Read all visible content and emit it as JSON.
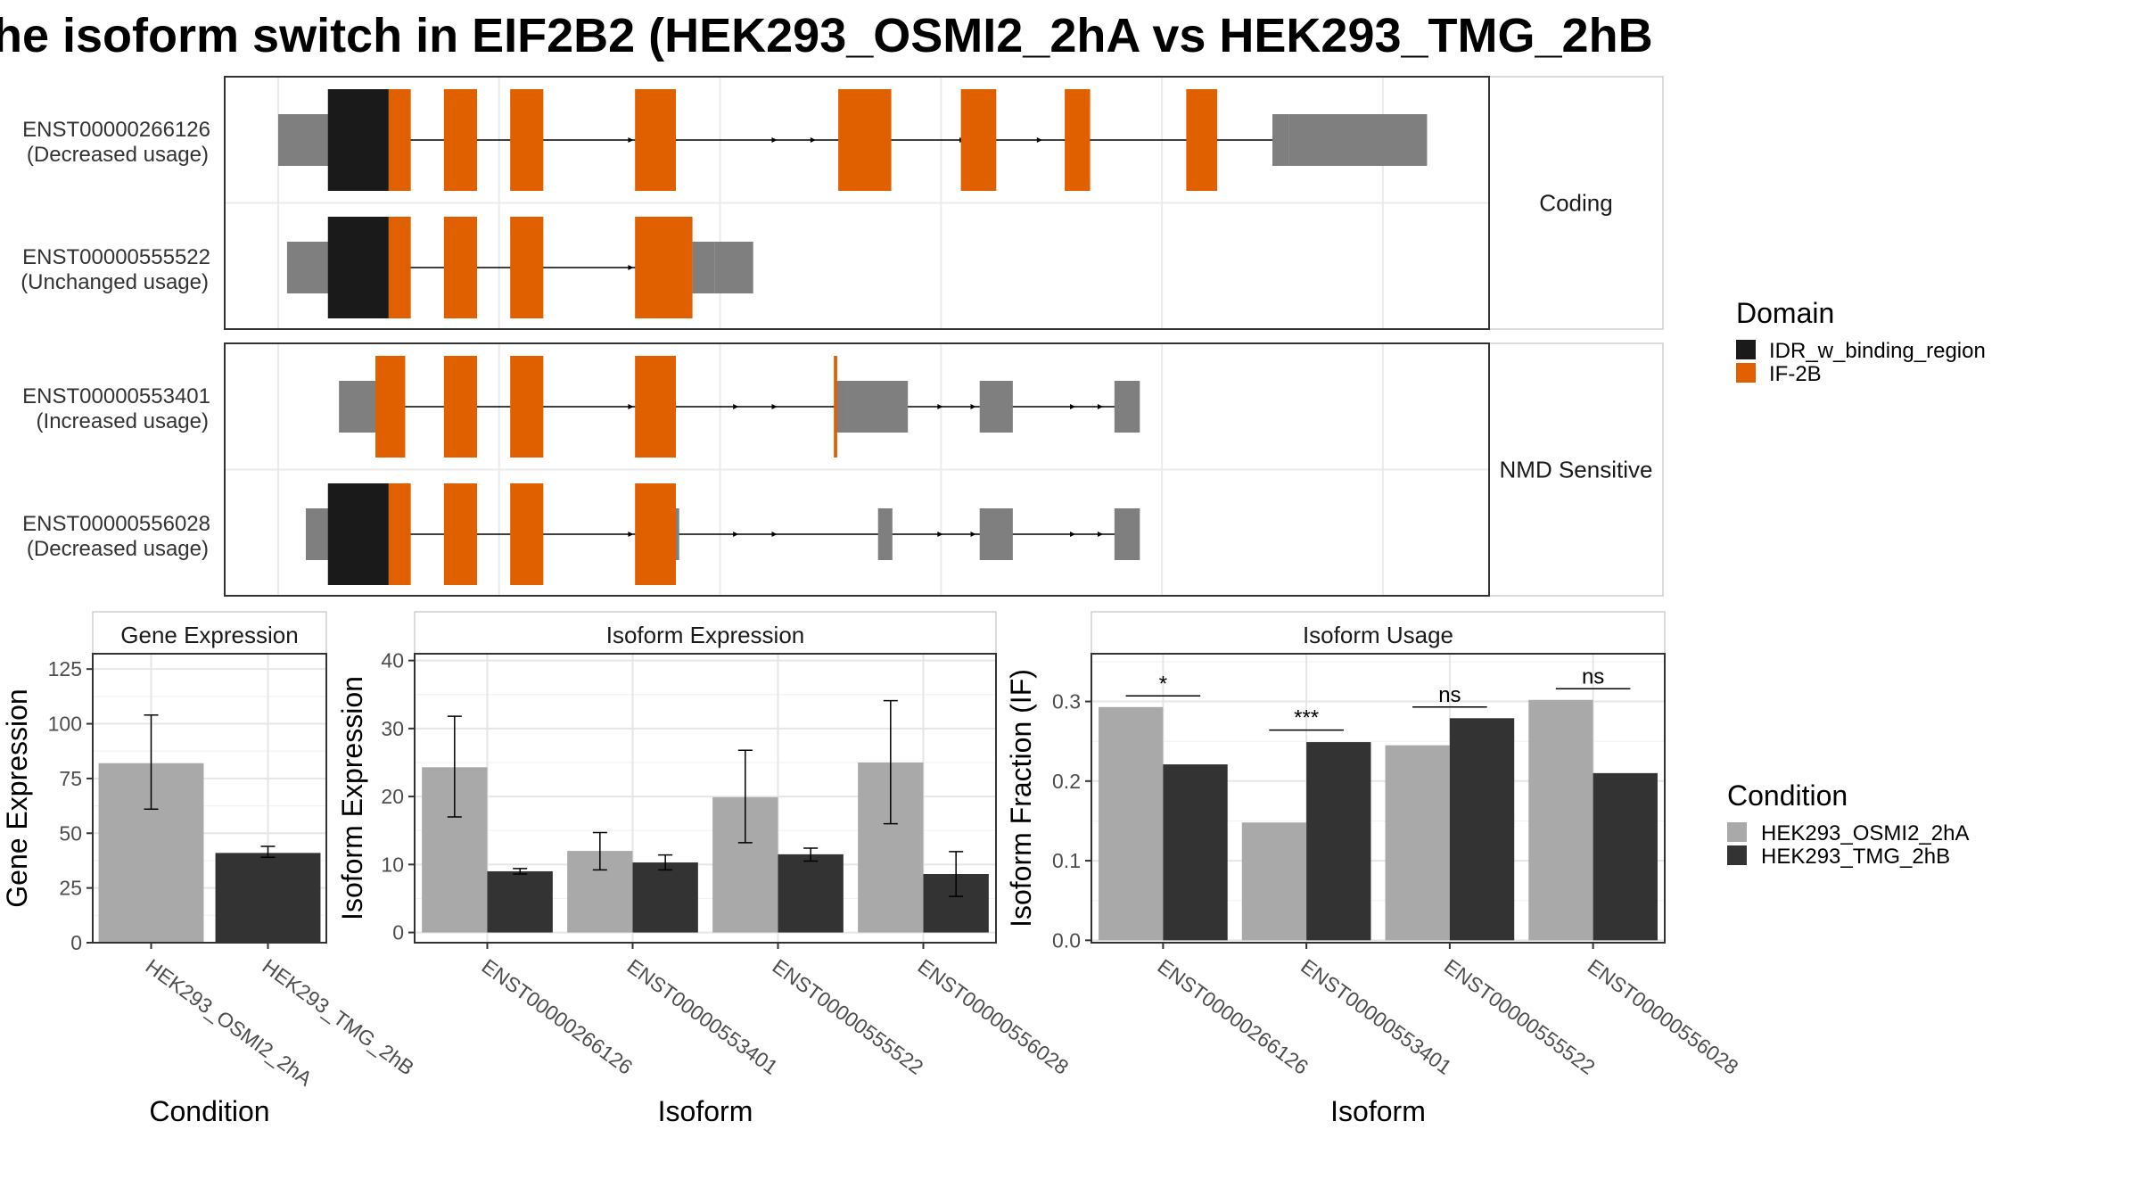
{
  "title": "he isoform switch in EIF2B2 (HEK293_OSMI2_2hA vs HEK293_TMG_2hB",
  "colors": {
    "idr": "#1a1a1a",
    "if2b": "#e06000",
    "utr": "#7f7f7f",
    "cond1": "#a9a9a9",
    "cond2": "#333333"
  },
  "structure": {
    "x_range": [
      0,
      1080
    ],
    "gridlines": [
      0,
      200,
      400,
      600,
      800,
      1000
    ],
    "facets": [
      {
        "label": "Coding",
        "isoforms": [
          {
            "id": "ENST00000266126",
            "usage": "(Decreased usage)",
            "intron": [
              100,
              903
            ],
            "utr": [
              [
                0,
                40
              ],
              [
                38,
                50
              ],
              [
                900,
                915
              ],
              [
                915,
                1040
              ]
            ],
            "idr": [
              [
                45,
                100
              ]
            ],
            "if2b": [
              [
                100,
                120
              ],
              [
                150,
                180
              ],
              [
                210,
                240
              ],
              [
                323,
                360
              ],
              [
                507,
                555
              ],
              [
                618,
                650
              ],
              [
                712,
                735
              ],
              [
                822,
                850
              ]
            ],
            "arrows": [
              235,
              320,
              450,
              485,
              540,
              620,
              690,
              720
            ]
          },
          {
            "id": "ENST00000555522",
            "usage": "(Unchanged usage)",
            "intron": [
              100,
              325
            ],
            "utr": [
              [
                8,
                42
              ],
              [
                38,
                48
              ],
              [
                375,
                395
              ],
              [
                395,
                430
              ]
            ],
            "idr": [
              [
                45,
                100
              ]
            ],
            "if2b": [
              [
                100,
                120
              ],
              [
                150,
                180
              ],
              [
                210,
                240
              ],
              [
                323,
                375
              ]
            ],
            "arrows": [
              235,
              320
            ]
          }
        ]
      },
      {
        "label": "NMD Sensitive",
        "isoforms": [
          {
            "id": "ENST00000553401",
            "usage": "(Increased usage)",
            "intron": [
              88,
              760
            ],
            "utr": [
              [
                55,
                90
              ],
              [
                505,
                515
              ],
              [
                515,
                570
              ],
              [
                635,
                665
              ],
              [
                757,
                780
              ]
            ],
            "idr": [],
            "if2b": [
              [
                88,
                115
              ],
              [
                150,
                180
              ],
              [
                210,
                240
              ],
              [
                323,
                360
              ],
              [
                503,
                506
              ]
            ],
            "arrows": [
              235,
              320,
              415,
              450,
              600,
              630,
              720,
              745
            ]
          },
          {
            "id": "ENST00000556028",
            "usage": "(Decreased usage)",
            "intron": [
              100,
              760
            ],
            "utr": [
              [
                25,
                40
              ],
              [
                35,
                48
              ],
              [
                360,
                363
              ],
              [
                543,
                556
              ],
              [
                545,
                553
              ],
              [
                635,
                665
              ],
              [
                757,
                780
              ]
            ],
            "idr": [
              [
                45,
                100
              ]
            ],
            "if2b": [
              [
                100,
                120
              ],
              [
                150,
                180
              ],
              [
                210,
                240
              ],
              [
                323,
                360
              ]
            ],
            "arrows": [
              235,
              320,
              415,
              450,
              600,
              630,
              720,
              745
            ]
          }
        ]
      }
    ]
  },
  "chart_data": [
    {
      "type": "bar",
      "title": "Gene Expression",
      "xlabel": "Condition",
      "ylabel": "Gene Expression",
      "categories": [
        "HEK293_OSMI2_2hA",
        "HEK293_TMG_2hB"
      ],
      "values": [
        82,
        41
      ],
      "error_low": [
        61,
        39
      ],
      "error_high": [
        104,
        44
      ],
      "ylim": [
        0,
        132
      ],
      "yticks": [
        0,
        25,
        50,
        75,
        100,
        125
      ]
    },
    {
      "type": "bar",
      "title": "Isoform Expression",
      "xlabel": "Isoform",
      "ylabel": "Isoform Expression",
      "categories": [
        "ENST00000266126",
        "ENST00000553401",
        "ENST00000555522",
        "ENST00000556028"
      ],
      "series": [
        {
          "name": "HEK293_OSMI2_2hA",
          "values": [
            24.3,
            12.0,
            19.9,
            25.0
          ],
          "error_low": [
            17.0,
            9.2,
            13.2,
            16.0
          ],
          "error_high": [
            31.8,
            14.7,
            26.8,
            34.1
          ]
        },
        {
          "name": "HEK293_TMG_2hB",
          "values": [
            9.0,
            10.3,
            11.5,
            8.6
          ],
          "error_low": [
            8.6,
            9.2,
            10.5,
            5.3
          ],
          "error_high": [
            9.4,
            11.4,
            12.4,
            11.9
          ]
        }
      ],
      "ylim": [
        -1.5,
        41
      ],
      "yticks": [
        0,
        10,
        20,
        30,
        40
      ]
    },
    {
      "type": "bar",
      "title": "Isoform Usage",
      "xlabel": "Isoform",
      "ylabel": "Isoform Fraction (IF)",
      "categories": [
        "ENST00000266126",
        "ENST00000553401",
        "ENST00000555522",
        "ENST00000556028"
      ],
      "series": [
        {
          "name": "HEK293_OSMI2_2hA",
          "values": [
            0.293,
            0.148,
            0.245,
            0.302
          ]
        },
        {
          "name": "HEK293_TMG_2hB",
          "values": [
            0.221,
            0.249,
            0.279,
            0.21
          ]
        }
      ],
      "significance": [
        "*",
        "***",
        "ns",
        "ns"
      ],
      "sig_line_y": [
        0.307,
        0.264,
        0.293,
        0.316
      ],
      "ylim": [
        -0.003,
        0.36
      ],
      "yticks": [
        0.0,
        0.1,
        0.2,
        0.3
      ]
    }
  ],
  "legends": {
    "domain": {
      "title": "Domain",
      "items": [
        {
          "label": "IDR_w_binding_region",
          "color": "#1a1a1a"
        },
        {
          "label": "IF-2B",
          "color": "#e06000"
        }
      ]
    },
    "condition": {
      "title": "Condition",
      "items": [
        {
          "label": "HEK293_OSMI2_2hA",
          "color": "#a9a9a9"
        },
        {
          "label": "HEK293_TMG_2hB",
          "color": "#333333"
        }
      ]
    }
  }
}
